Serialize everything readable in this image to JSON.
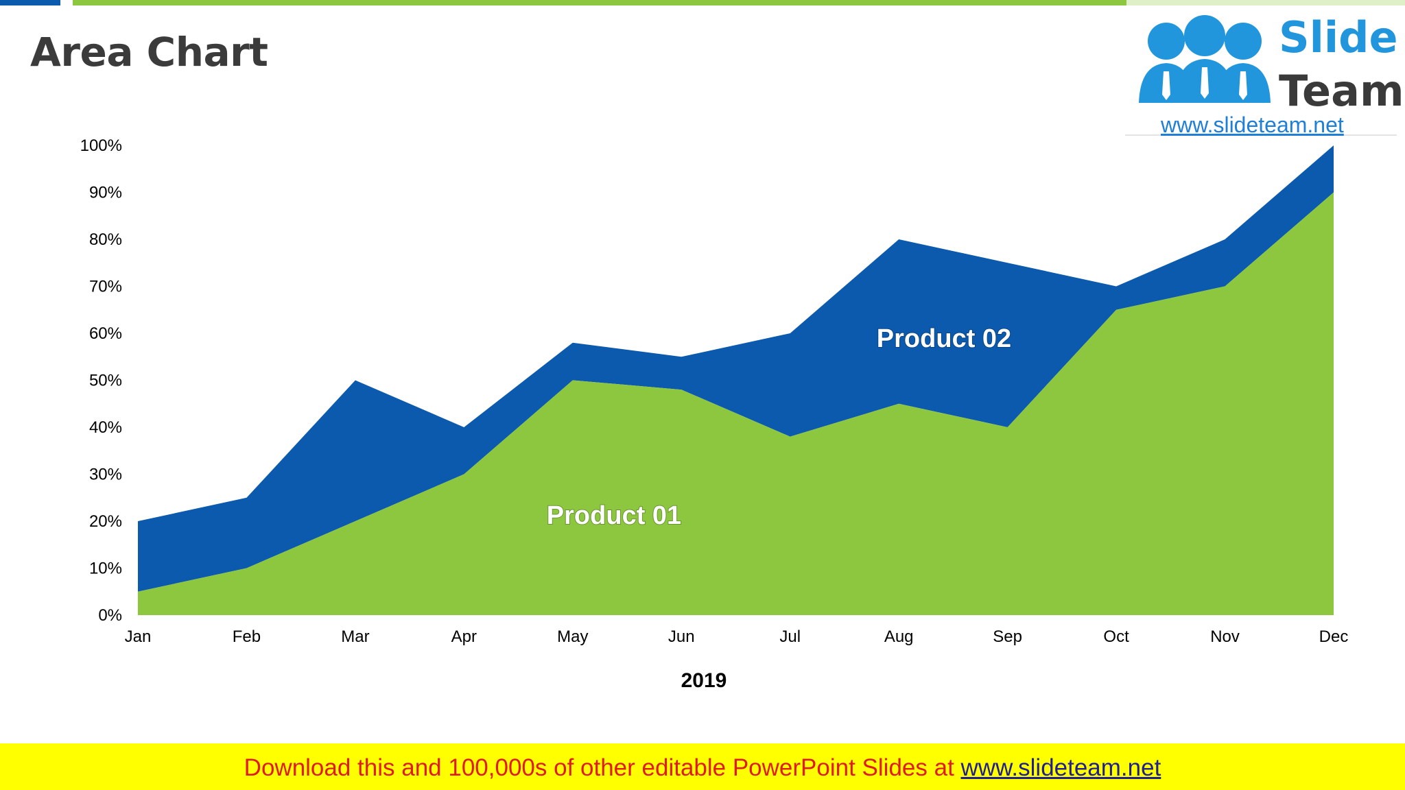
{
  "slide": {
    "title": "Area Chart",
    "logo": {
      "word1": "Slide",
      "word2": "Team",
      "url": "www.slideteam.net"
    },
    "footer": {
      "text": "Download this and 100,000s of other editable PowerPoint Slides at ",
      "link": "www.slideteam.net"
    }
  },
  "colors": {
    "accent_blue": "#0b5aad",
    "accent_green": "#8dc63f",
    "footer_bg": "#ffff00",
    "footer_text": "#e11a1a"
  },
  "chart_data": {
    "type": "area",
    "stacked": true,
    "categories": [
      "Jan",
      "Feb",
      "Mar",
      "Apr",
      "May",
      "Jun",
      "Jul",
      "Aug",
      "Sep",
      "Oct",
      "Nov",
      "Dec"
    ],
    "series": [
      {
        "name": "Product 01",
        "color": "#8dc63f",
        "values": [
          5,
          10,
          20,
          30,
          50,
          48,
          38,
          45,
          40,
          65,
          70,
          90
        ]
      },
      {
        "name": "Product 02",
        "color": "#0b5aad",
        "values": [
          15,
          15,
          30,
          10,
          8,
          7,
          22,
          35,
          35,
          5,
          10,
          10
        ]
      }
    ],
    "y_ticks": [
      "0%",
      "10%",
      "20%",
      "30%",
      "40%",
      "50%",
      "60%",
      "70%",
      "80%",
      "90%",
      "100%"
    ],
    "ylim": [
      0,
      100
    ],
    "xlabel": "2019",
    "ylabel": "",
    "grid": false,
    "legend": "none"
  }
}
